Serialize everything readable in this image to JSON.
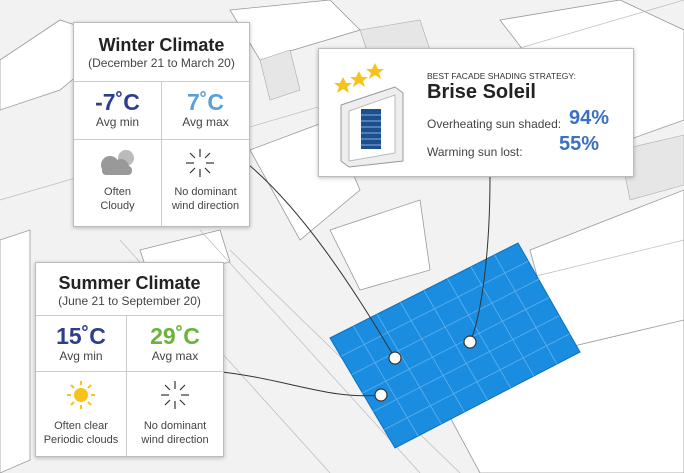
{
  "winter": {
    "title": "Winter Climate",
    "dates": "(December 21 to March 20)",
    "min_temp": "-7˚C",
    "min_label": "Avg min",
    "max_temp": "7˚C",
    "max_label": "Avg max",
    "sky": [
      "Often",
      "Cloudy"
    ],
    "wind": [
      "No dominant",
      "wind direction"
    ]
  },
  "summer": {
    "title": "Summer Climate",
    "dates": "(June 21 to September 20)",
    "min_temp": "15˚C",
    "min_label": "Avg min",
    "max_temp": "29˚C",
    "max_label": "Avg max",
    "sky": [
      "Often clear",
      "Periodic clouds"
    ],
    "wind": [
      "No dominant",
      "wind direction"
    ]
  },
  "strategy": {
    "heading": "BEST FACADE SHADING STRATEGY:",
    "name": "Brise Soleil",
    "rows": [
      {
        "label": "Overheating sun shaded:",
        "value": "94%"
      },
      {
        "label": "Warming sun lost:",
        "value": "55%"
      }
    ]
  }
}
